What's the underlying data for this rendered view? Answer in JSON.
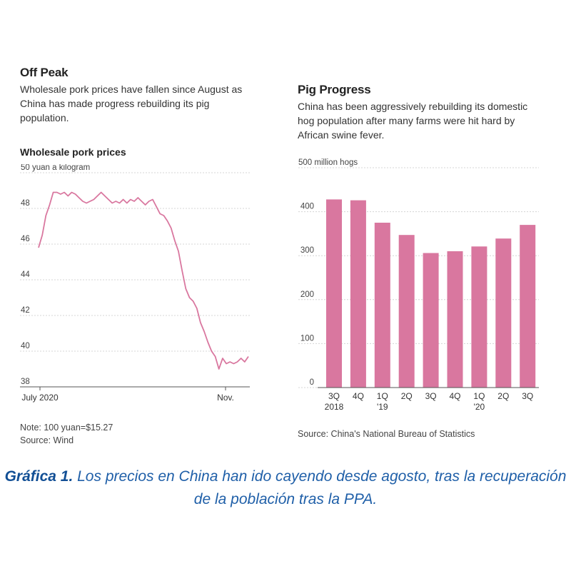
{
  "chart_data": [
    {
      "type": "line",
      "title": "Off Peak",
      "subtitle": "Wholesale pork prices have fallen since August as China has made progress rebuilding its pig population.",
      "chart_heading": "Wholesale pork prices",
      "unit_label": "50 yuan a kilogram",
      "y_ticks": [
        50,
        48,
        46,
        44,
        42,
        40,
        38
      ],
      "ylim": [
        38,
        50
      ],
      "x_tick_labels": [
        "July 2020",
        "Nov."
      ],
      "grid": true,
      "color": "#d9779f",
      "series": [
        {
          "values": [
            45.8,
            46.5,
            47.6,
            48.2,
            48.9,
            48.9,
            48.8,
            48.9,
            48.7,
            48.9,
            48.8,
            48.6,
            48.4,
            48.3,
            48.4,
            48.5,
            48.7,
            48.9,
            48.7,
            48.5,
            48.3,
            48.4,
            48.3,
            48.5,
            48.3,
            48.5,
            48.4,
            48.6,
            48.4,
            48.2,
            48.4,
            48.5,
            48.1,
            47.7,
            47.6,
            47.3,
            46.9,
            46.2,
            45.6,
            44.5,
            43.5,
            43.0,
            42.8,
            42.4,
            41.6,
            41.1,
            40.5,
            40.0,
            39.7,
            39.0,
            39.6,
            39.3,
            39.4,
            39.3,
            39.4,
            39.6,
            39.4,
            39.7
          ]
        }
      ],
      "note": "Note: 100 yuan=$15.27",
      "source": "Source: Wind"
    },
    {
      "type": "bar",
      "title": "Pig Progress",
      "subtitle": "China has been aggressively rebuilding its domestic hog population after many farms were hit hard by African swine fever.",
      "unit_label": "500 million hogs",
      "y_ticks": [
        500,
        400,
        300,
        200,
        100,
        0
      ],
      "ylim": [
        0,
        500
      ],
      "grid": true,
      "color": "#d9779f",
      "categories": [
        [
          "3Q",
          "2018"
        ],
        [
          "4Q",
          ""
        ],
        [
          "1Q",
          "'19"
        ],
        [
          "2Q",
          ""
        ],
        [
          "3Q",
          ""
        ],
        [
          "4Q",
          ""
        ],
        [
          "1Q",
          "'20"
        ],
        [
          "2Q",
          ""
        ],
        [
          "3Q",
          ""
        ]
      ],
      "values": [
        428,
        426,
        375,
        347,
        306,
        310,
        321,
        339,
        370
      ],
      "source": "Source: China's National Bureau of Statistics"
    }
  ],
  "caption": {
    "lead": "Gráfica 1.",
    "text": " Los precios en China han ido cayendo desde agosto, tras la recuperación de la población tras la PPA."
  }
}
